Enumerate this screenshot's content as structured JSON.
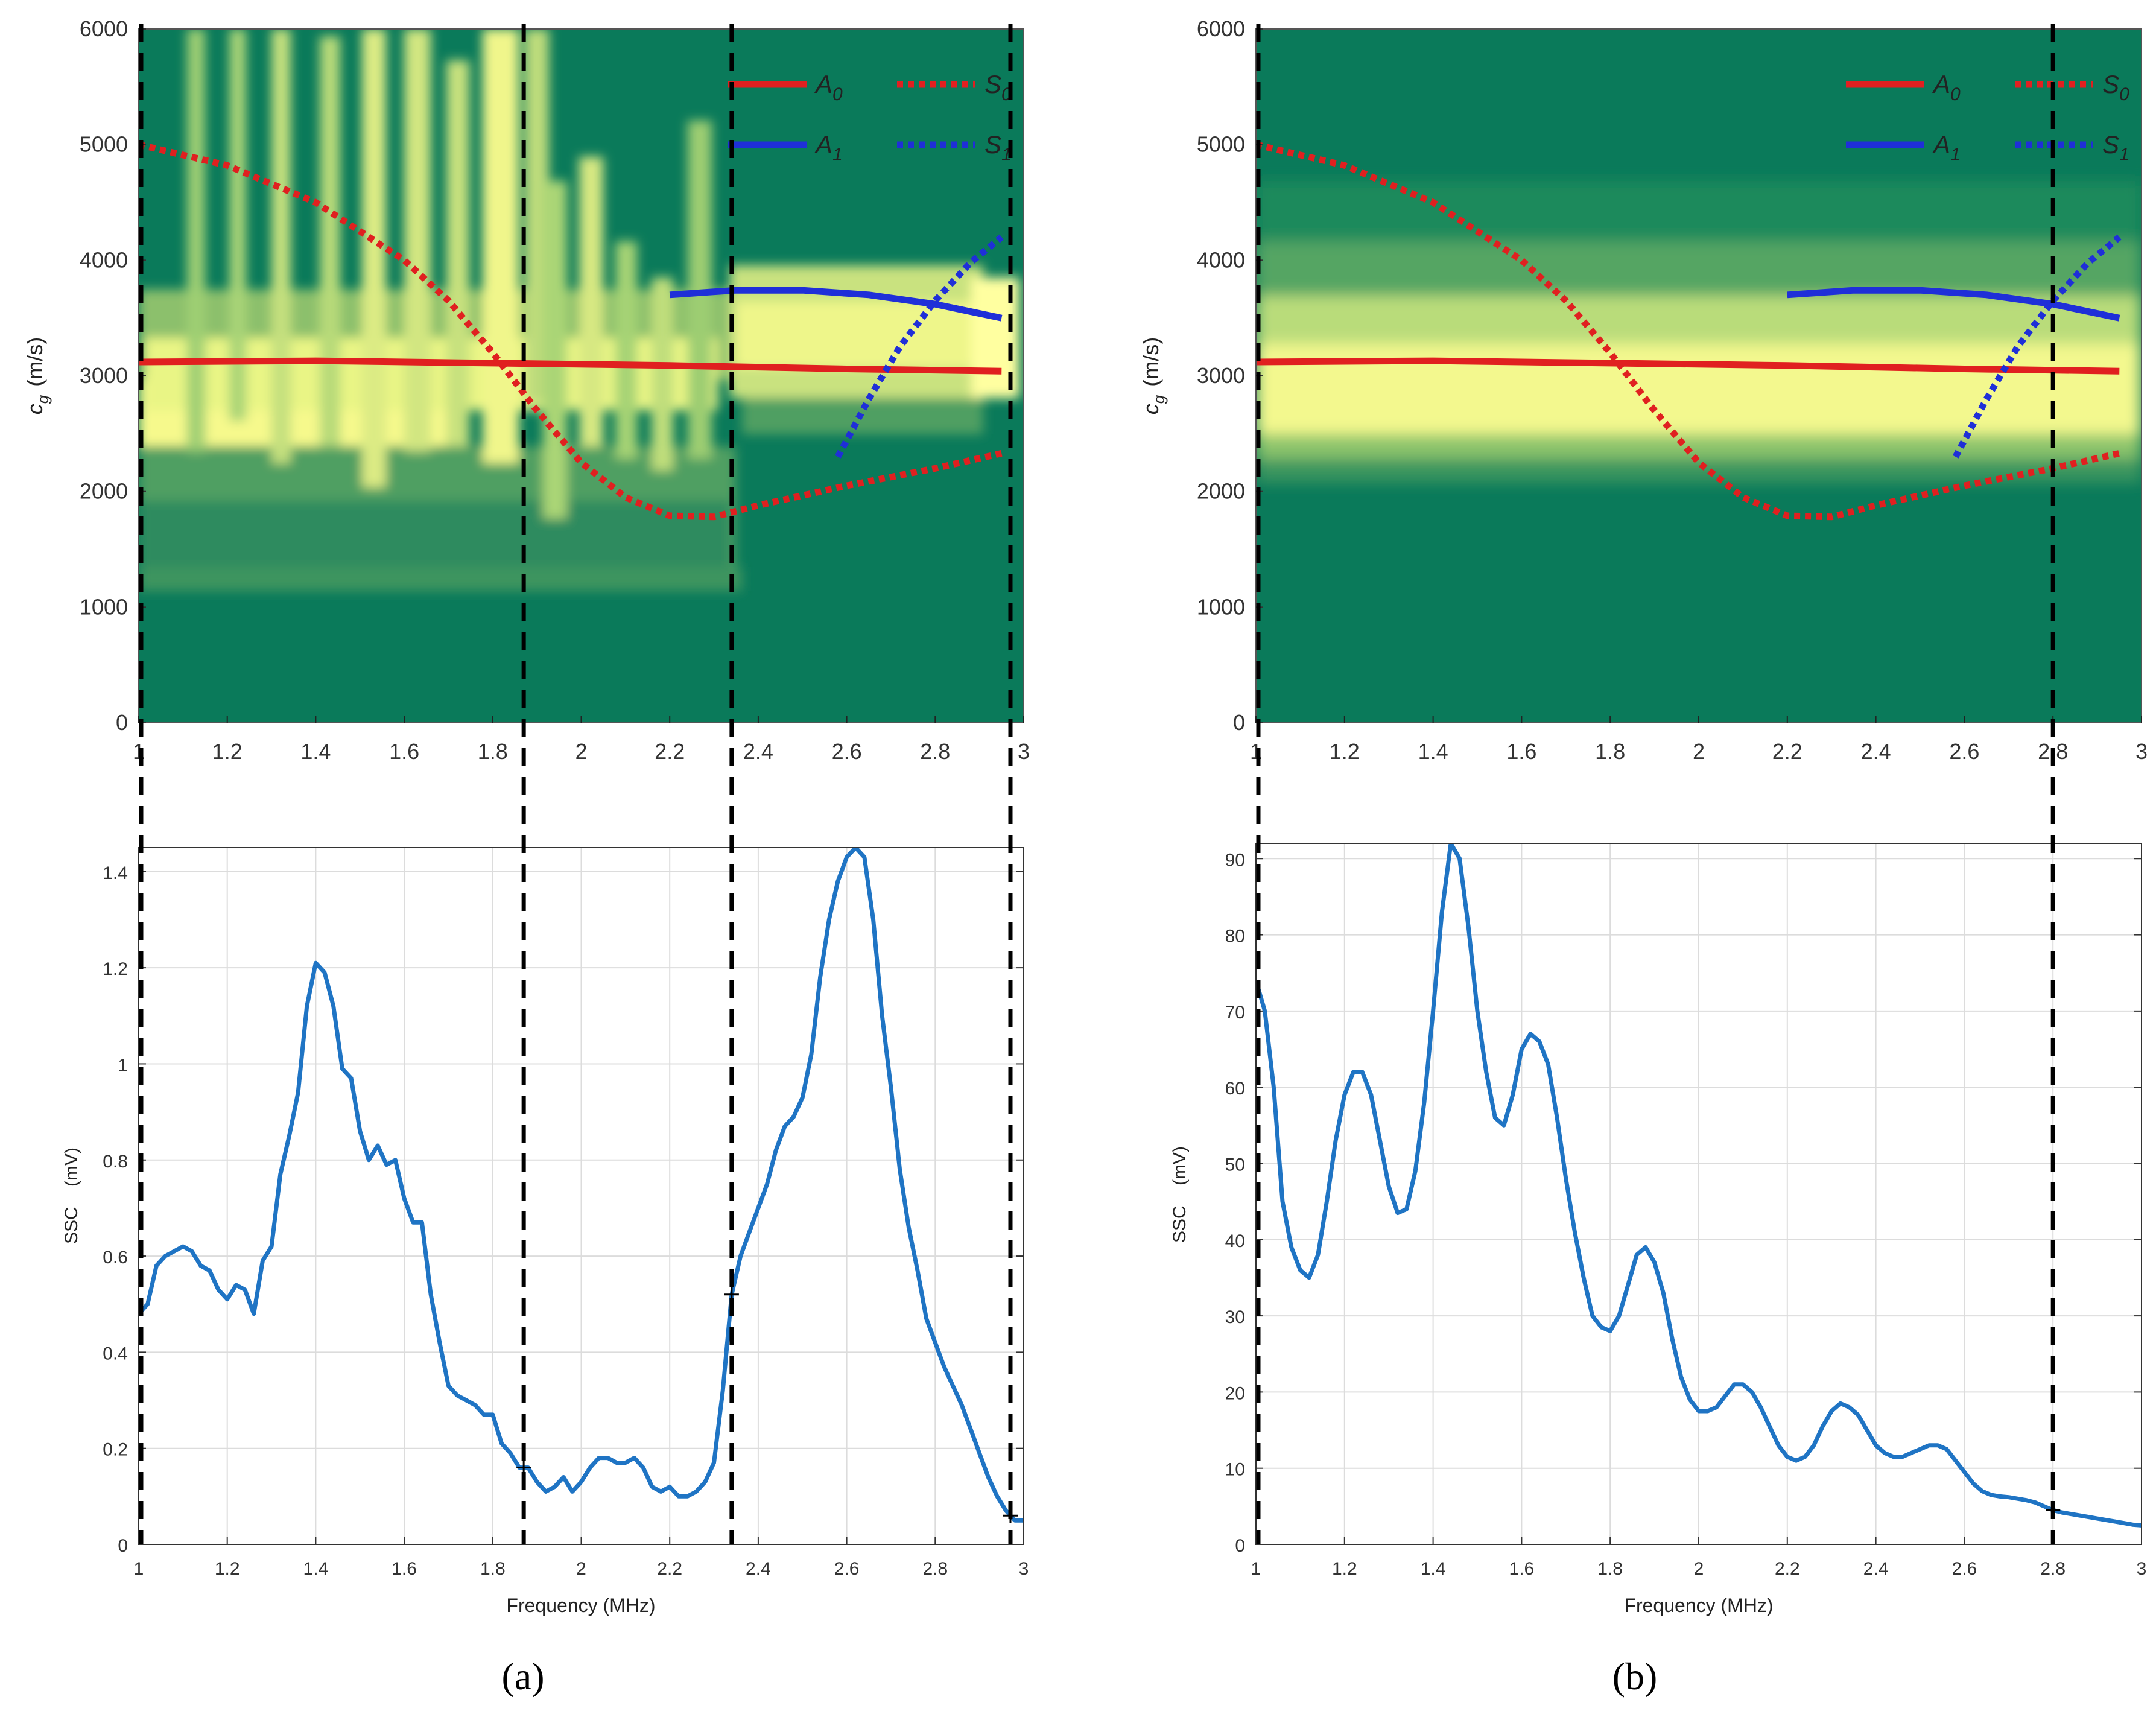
{
  "colors": {
    "map_background": "#0a7a5a",
    "map_mid": "#5fae63",
    "map_high": "#fbfd9a",
    "A0": "#e02020",
    "S0": "#e02020",
    "A1": "#1f2fd8",
    "S1": "#1f2fd8",
    "ssc_line": "#1f74c4",
    "marker_line": "#000000",
    "grid": "#dcdcdc"
  },
  "chart_data": [
    {
      "type": "heatmap",
      "panel": "a",
      "ylabel_main": "c",
      "ylabel_sub": "g",
      "ylabel_unit": "(m/s)",
      "xlim": [
        1,
        3
      ],
      "ylim": [
        0,
        6000
      ],
      "xticks": [
        "1",
        "1.2",
        "1.4",
        "1.6",
        "1.8",
        "2",
        "2.2",
        "2.4",
        "2.6",
        "2.8",
        "3"
      ],
      "yticks": [
        "0",
        "1000",
        "2000",
        "3000",
        "4000",
        "5000",
        "6000"
      ],
      "legend": [
        {
          "name": "A",
          "sub": "0",
          "style": "solid",
          "color": "red"
        },
        {
          "name": "S",
          "sub": "0",
          "style": "dotted",
          "color": "red"
        },
        {
          "name": "A",
          "sub": "1",
          "style": "solid",
          "color": "blue"
        },
        {
          "name": "S",
          "sub": "1",
          "style": "dotted",
          "color": "blue"
        }
      ],
      "series": [
        {
          "name": "A0",
          "x": [
            1.0,
            1.4,
            1.8,
            2.2,
            2.6,
            2.95
          ],
          "y": [
            3120,
            3130,
            3110,
            3090,
            3060,
            3040
          ]
        },
        {
          "name": "S0",
          "x": [
            1.0,
            1.2,
            1.4,
            1.6,
            1.7,
            1.8,
            1.9,
            2.0,
            2.1,
            2.2,
            2.3,
            2.4,
            2.6,
            2.8,
            2.95
          ],
          "y": [
            5000,
            4820,
            4500,
            4000,
            3650,
            3200,
            2700,
            2250,
            1950,
            1790,
            1780,
            1880,
            2050,
            2200,
            2330
          ]
        },
        {
          "name": "A1",
          "x": [
            2.2,
            2.35,
            2.5,
            2.65,
            2.8,
            2.95
          ],
          "y": [
            3700,
            3740,
            3740,
            3700,
            3620,
            3500
          ]
        },
        {
          "name": "S1",
          "x": [
            2.58,
            2.65,
            2.72,
            2.8,
            2.88,
            2.95
          ],
          "y": [
            2300,
            2800,
            3250,
            3650,
            3980,
            4200
          ]
        }
      ],
      "markers_x": [
        1.0,
        1.87,
        2.34,
        2.97
      ]
    },
    {
      "type": "heatmap",
      "panel": "b",
      "ylabel_main": "c",
      "ylabel_sub": "g",
      "ylabel_unit": "(m/s)",
      "xlim": [
        1,
        3
      ],
      "ylim": [
        0,
        6000
      ],
      "xticks": [
        "1",
        "1.2",
        "1.4",
        "1.6",
        "1.8",
        "2",
        "2.2",
        "2.4",
        "2.6",
        "2.8",
        "3"
      ],
      "yticks": [
        "0",
        "1000",
        "2000",
        "3000",
        "4000",
        "5000",
        "6000"
      ],
      "legend": [
        {
          "name": "A",
          "sub": "0",
          "style": "solid",
          "color": "red"
        },
        {
          "name": "S",
          "sub": "0",
          "style": "dotted",
          "color": "red"
        },
        {
          "name": "A",
          "sub": "1",
          "style": "solid",
          "color": "blue"
        },
        {
          "name": "S",
          "sub": "1",
          "style": "dotted",
          "color": "blue"
        }
      ],
      "series": [
        {
          "name": "A0",
          "x": [
            1.0,
            1.4,
            1.8,
            2.2,
            2.6,
            2.95
          ],
          "y": [
            3120,
            3130,
            3110,
            3090,
            3060,
            3040
          ]
        },
        {
          "name": "S0",
          "x": [
            1.0,
            1.2,
            1.4,
            1.6,
            1.7,
            1.8,
            1.9,
            2.0,
            2.1,
            2.2,
            2.3,
            2.4,
            2.6,
            2.8,
            2.95
          ],
          "y": [
            5000,
            4820,
            4500,
            4000,
            3650,
            3200,
            2700,
            2250,
            1950,
            1790,
            1780,
            1880,
            2050,
            2200,
            2330
          ]
        },
        {
          "name": "A1",
          "x": [
            2.2,
            2.35,
            2.5,
            2.65,
            2.8,
            2.95
          ],
          "y": [
            3700,
            3740,
            3740,
            3700,
            3620,
            3500
          ]
        },
        {
          "name": "S1",
          "x": [
            2.58,
            2.65,
            2.72,
            2.8,
            2.88,
            2.95
          ],
          "y": [
            2300,
            2800,
            3250,
            3650,
            3980,
            4200
          ]
        }
      ],
      "markers_x": [
        1.0,
        2.8
      ]
    },
    {
      "type": "line",
      "panel": "a",
      "xlabel": "Frequency (MHz)",
      "ylabel": "SSC    (mV)",
      "xlim": [
        1,
        3
      ],
      "ylim": [
        0,
        1.45
      ],
      "xticks": [
        "1",
        "1.2",
        "1.4",
        "1.6",
        "1.8",
        "2",
        "2.2",
        "2.4",
        "2.6",
        "2.8",
        "3"
      ],
      "yticks": [
        "0",
        "0.2",
        "0.4",
        "0.6",
        "0.8",
        "1",
        "1.2",
        "1.4"
      ],
      "series": [
        {
          "name": "SSC",
          "x": [
            1.0,
            1.02,
            1.04,
            1.06,
            1.08,
            1.1,
            1.12,
            1.14,
            1.16,
            1.18,
            1.2,
            1.22,
            1.24,
            1.26,
            1.28,
            1.3,
            1.32,
            1.34,
            1.36,
            1.38,
            1.4,
            1.42,
            1.44,
            1.46,
            1.48,
            1.5,
            1.52,
            1.54,
            1.56,
            1.58,
            1.6,
            1.62,
            1.64,
            1.66,
            1.68,
            1.7,
            1.72,
            1.74,
            1.76,
            1.78,
            1.8,
            1.82,
            1.84,
            1.86,
            1.88,
            1.9,
            1.92,
            1.94,
            1.96,
            1.98,
            2.0,
            2.02,
            2.04,
            2.06,
            2.08,
            2.1,
            2.12,
            2.14,
            2.16,
            2.18,
            2.2,
            2.22,
            2.24,
            2.26,
            2.28,
            2.3,
            2.32,
            2.34,
            2.36,
            2.38,
            2.4,
            2.42,
            2.44,
            2.46,
            2.48,
            2.5,
            2.52,
            2.54,
            2.56,
            2.58,
            2.6,
            2.62,
            2.64,
            2.66,
            2.68,
            2.7,
            2.72,
            2.74,
            2.76,
            2.78,
            2.8,
            2.82,
            2.84,
            2.86,
            2.88,
            2.9,
            2.92,
            2.94,
            2.96,
            2.98,
            3.0
          ],
          "y": [
            0.48,
            0.5,
            0.58,
            0.6,
            0.61,
            0.62,
            0.61,
            0.58,
            0.57,
            0.53,
            0.51,
            0.54,
            0.53,
            0.48,
            0.59,
            0.62,
            0.77,
            0.85,
            0.94,
            1.12,
            1.21,
            1.19,
            1.12,
            0.99,
            0.97,
            0.86,
            0.8,
            0.83,
            0.79,
            0.8,
            0.72,
            0.67,
            0.67,
            0.52,
            0.42,
            0.33,
            0.31,
            0.3,
            0.29,
            0.27,
            0.27,
            0.21,
            0.19,
            0.16,
            0.16,
            0.13,
            0.11,
            0.12,
            0.14,
            0.11,
            0.13,
            0.16,
            0.18,
            0.18,
            0.17,
            0.17,
            0.18,
            0.16,
            0.12,
            0.11,
            0.12,
            0.1,
            0.1,
            0.11,
            0.13,
            0.17,
            0.32,
            0.52,
            0.6,
            0.65,
            0.7,
            0.75,
            0.82,
            0.87,
            0.89,
            0.93,
            1.02,
            1.18,
            1.3,
            1.38,
            1.43,
            1.45,
            1.43,
            1.3,
            1.1,
            0.95,
            0.78,
            0.66,
            0.57,
            0.47,
            0.42,
            0.37,
            0.33,
            0.29,
            0.24,
            0.19,
            0.14,
            0.1,
            0.07,
            0.05,
            0.05
          ]
        }
      ],
      "markers_x": [
        1.0,
        1.87,
        2.34,
        2.97
      ]
    },
    {
      "type": "line",
      "panel": "b",
      "xlabel": "Frequency (MHz)",
      "ylabel": "SSC    (mV)",
      "xlim": [
        1,
        3
      ],
      "ylim": [
        0,
        92
      ],
      "xticks": [
        "1",
        "1.2",
        "1.4",
        "1.6",
        "1.8",
        "2",
        "2.2",
        "2.4",
        "2.6",
        "2.8",
        "3"
      ],
      "yticks": [
        "0",
        "10",
        "20",
        "30",
        "40",
        "50",
        "60",
        "70",
        "80",
        "90"
      ],
      "series": [
        {
          "name": "SSC",
          "x": [
            1.0,
            1.02,
            1.04,
            1.06,
            1.08,
            1.1,
            1.12,
            1.14,
            1.16,
            1.18,
            1.2,
            1.22,
            1.24,
            1.26,
            1.28,
            1.3,
            1.32,
            1.34,
            1.36,
            1.38,
            1.4,
            1.42,
            1.44,
            1.46,
            1.48,
            1.5,
            1.52,
            1.54,
            1.56,
            1.58,
            1.6,
            1.62,
            1.64,
            1.66,
            1.68,
            1.7,
            1.72,
            1.74,
            1.76,
            1.78,
            1.8,
            1.82,
            1.84,
            1.86,
            1.88,
            1.9,
            1.92,
            1.94,
            1.96,
            1.98,
            2.0,
            2.02,
            2.04,
            2.06,
            2.08,
            2.1,
            2.12,
            2.14,
            2.16,
            2.18,
            2.2,
            2.22,
            2.24,
            2.26,
            2.28,
            2.3,
            2.32,
            2.34,
            2.36,
            2.38,
            2.4,
            2.42,
            2.44,
            2.46,
            2.48,
            2.5,
            2.52,
            2.54,
            2.56,
            2.58,
            2.6,
            2.62,
            2.64,
            2.66,
            2.68,
            2.7,
            2.72,
            2.74,
            2.76,
            2.78,
            2.8,
            2.82,
            2.84,
            2.86,
            2.88,
            2.9,
            2.92,
            2.94,
            2.96,
            2.98,
            3.0
          ],
          "y": [
            74,
            70,
            60,
            45,
            39,
            36,
            35,
            38,
            45,
            53,
            59,
            62,
            62,
            59,
            53,
            47,
            43.5,
            44,
            49,
            58,
            70,
            83,
            92,
            90,
            81,
            70,
            62,
            56,
            55,
            59,
            65,
            67,
            66,
            63,
            56,
            48,
            41,
            35,
            30,
            28.5,
            28,
            30,
            34,
            38,
            39,
            37,
            33,
            27,
            22,
            19,
            17.5,
            17.5,
            18,
            19.5,
            21,
            21,
            20,
            18,
            15.5,
            13,
            11.5,
            11,
            11.5,
            13,
            15.5,
            17.5,
            18.5,
            18,
            17,
            15,
            13,
            12,
            11.5,
            11.5,
            12,
            12.5,
            13,
            13,
            12.5,
            11,
            9.5,
            8,
            7,
            6.5,
            6.3,
            6.2,
            6,
            5.8,
            5.5,
            5,
            4.5,
            4.2,
            4,
            3.8,
            3.6,
            3.4,
            3.2,
            3.0,
            2.8,
            2.6,
            2.5
          ]
        }
      ],
      "markers_x": [
        1.0,
        2.8
      ]
    }
  ],
  "panel_labels": [
    "(a)",
    "(b)"
  ]
}
